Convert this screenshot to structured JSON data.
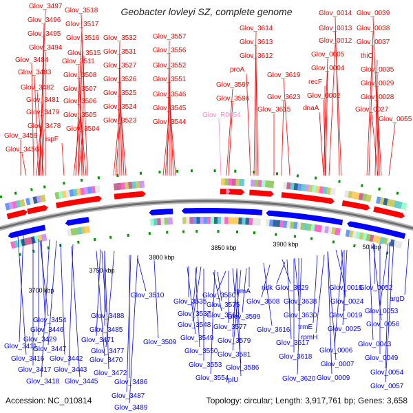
{
  "title": "Geobacter lovleyi SZ, complete genome",
  "footer": {
    "accession": "Accession: NC_010814",
    "topology": "Topology: circular; Length: 3,917,761 bp; Genes: 3,658"
  },
  "colors": {
    "forward": "#ff0000",
    "reverse": "#0000ff",
    "rna": "#ff88cc",
    "backbone": "#888888",
    "tick": "#009900"
  },
  "kbp_marks": [
    "3700 kbp",
    "3750 kbp",
    "3800 kbp",
    "3850 kbp",
    "3900 kbp",
    "50 kbp"
  ],
  "top_labels": [
    "Glov_3497",
    "Glov_3496",
    "Glov_3495",
    "Glov_3494",
    "Glov_3484",
    "Glov_3483",
    "Glov_3482",
    "Glov_3481",
    "Glov_3479",
    "Glov_3478",
    "Glov_3459",
    "ispF",
    "Glov_3456",
    "Glov_3518",
    "Glov_3517",
    "Glov_3516",
    "Glov_3515",
    "Glov_3511",
    "Glov_3508",
    "Glov_3507",
    "Glov_3506",
    "Glov_3505",
    "Glov_3504",
    "Glov_3532",
    "Glov_3531",
    "Glov_3527",
    "Glov_3526",
    "Glov_3525",
    "Glov_3524",
    "Glov_3523",
    "Glov_3557",
    "Glov_3556",
    "Glov_3552",
    "Glov_3551",
    "Glov_3546",
    "Glov_3545",
    "Glov_3544",
    "Glov_3614",
    "Glov_3613",
    "Glov_3612",
    "proA",
    "Glov_3619",
    "Glov_3597",
    "Glov_3596",
    "Glov_3623",
    "Glov_3615",
    "Glov_R0054",
    "Glov_0014",
    "Glov_0013",
    "Glov_0012",
    "Glov_0005",
    "Glov_0004",
    "recF",
    "Glov_0002",
    "dnaA",
    "Glov_0039",
    "Glov_0038",
    "Glov_0037",
    "thiC",
    "Glov_0035",
    "Glov_0029",
    "Glov_0028",
    "Glov_0027",
    "Glov_0055"
  ],
  "bottom_labels": [
    "Glov_3454",
    "Glov_3446",
    "Glov_3429",
    "Glov_3411",
    "Glov_3447",
    "Glov_3416",
    "Glov_3442",
    "Glov_3417",
    "Glov_3443",
    "Glov_3418",
    "Glov_3445",
    "Glov_3488",
    "Glov_3485",
    "Glov_3471",
    "Glov_3477",
    "Glov_3470",
    "Glov_3472",
    "Glov_3486",
    "Glov_3487",
    "Glov_3489",
    "Glov_3510",
    "Glov_3509",
    "Glov_3535",
    "Glov_3537",
    "Glov_3548",
    "Glov_3549",
    "Glov_3550",
    "Glov_3553",
    "Glov_3554",
    "Glov_3560",
    "Glov_3562",
    "Glov_3575",
    "Glov_3577",
    "Glov_3579",
    "Glov_3581",
    "Glov_3586",
    "rplU",
    "rpmA",
    "Glov_3599",
    "Glov_3608",
    "Glov_3616",
    "Glov_3617",
    "Glov_3618",
    "Glov_3620",
    "ndk",
    "Glov_3629",
    "Glov_3638",
    "Glov_3630",
    "trmE",
    "rpmH",
    "Glov_0018",
    "Glov_0024",
    "Glov_0019",
    "Glov_0025",
    "Glov_0006",
    "Glov_0007",
    "Glov_0009",
    "Glov_0052",
    "argD",
    "Glov_0053",
    "Glov_0056",
    "Glov_0043",
    "Glov_0049",
    "Glov_0054",
    "Glov_0057"
  ]
}
